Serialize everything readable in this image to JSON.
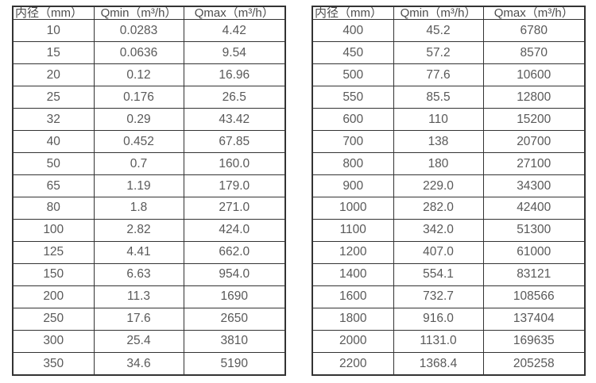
{
  "left_table": {
    "headers": [
      "内径（mm）",
      "Qmin（m³/h）",
      "Qmax（m³/h）"
    ],
    "rows": [
      [
        "10",
        "0.0283",
        "4.42"
      ],
      [
        "15",
        "0.0636",
        "9.54"
      ],
      [
        "20",
        "0.12",
        "16.96"
      ],
      [
        "25",
        "0.176",
        "26.5"
      ],
      [
        "32",
        "0.29",
        "43.42"
      ],
      [
        "40",
        "0.452",
        "67.85"
      ],
      [
        "50",
        "0.7",
        "160.0"
      ],
      [
        "65",
        "1.19",
        "179.0"
      ],
      [
        "80",
        "1.8",
        "271.0"
      ],
      [
        "100",
        "2.82",
        "424.0"
      ],
      [
        "125",
        "4.41",
        "662.0"
      ],
      [
        "150",
        "6.63",
        "954.0"
      ],
      [
        "200",
        "11.3",
        "1690"
      ],
      [
        "250",
        "17.6",
        "2650"
      ],
      [
        "300",
        "25.4",
        "3810"
      ],
      [
        "350",
        "34.6",
        "5190"
      ]
    ]
  },
  "right_table": {
    "headers": [
      "内径（mm）",
      "Qmin（m³/h）",
      "Qmax（m³/h）"
    ],
    "rows": [
      [
        "400",
        "45.2",
        "6780"
      ],
      [
        "450",
        "57.2",
        "8570"
      ],
      [
        "500",
        "77.6",
        "10600"
      ],
      [
        "550",
        "85.5",
        "12800"
      ],
      [
        "600",
        "110",
        "15200"
      ],
      [
        "700",
        "138",
        "20700"
      ],
      [
        "800",
        "180",
        "27100"
      ],
      [
        "900",
        "229.0",
        "34300"
      ],
      [
        "1000",
        "282.0",
        "42400"
      ],
      [
        "1100",
        "342.0",
        "51300"
      ],
      [
        "1200",
        "407.0",
        "61000"
      ],
      [
        "1400",
        "554.1",
        "83121"
      ],
      [
        "1600",
        "732.7",
        "108566"
      ],
      [
        "1800",
        "916.0",
        "137404"
      ],
      [
        "2000",
        "1131.0",
        "169635"
      ],
      [
        "2200",
        "1368.4",
        "205258"
      ]
    ]
  },
  "colors": {
    "border": "#333333",
    "text": "#595959",
    "background": "#ffffff"
  }
}
